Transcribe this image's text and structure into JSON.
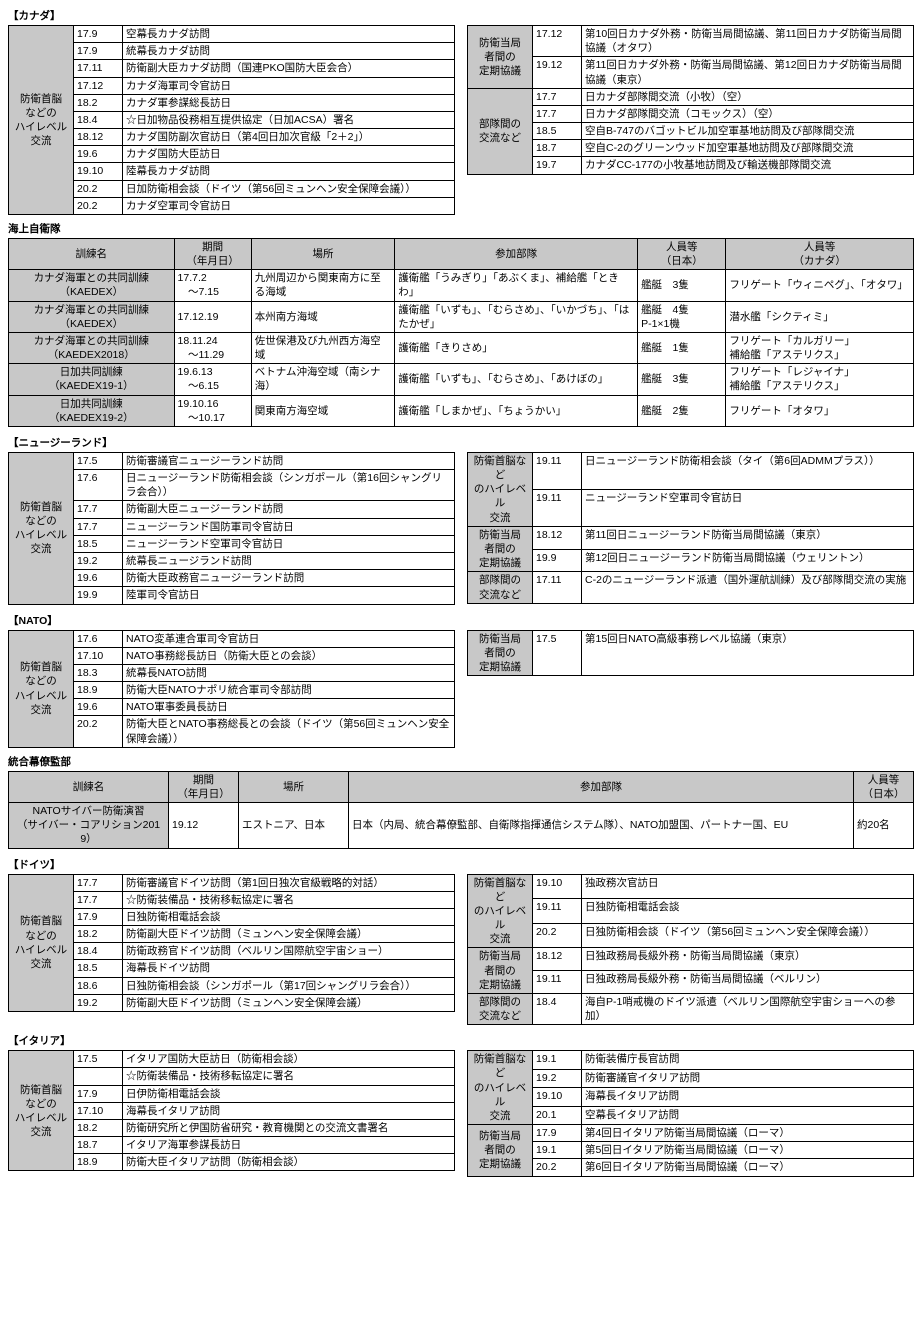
{
  "colors": {
    "header_bg": "#c8c8c8",
    "border": "#000000",
    "bg": "#ffffff",
    "text": "#000000"
  },
  "font": {
    "family": "Hiragino Kaku Gothic Pro",
    "size_pt": 10.5,
    "header_weight": "bold"
  },
  "canada": {
    "heading": "【カナダ】",
    "left": {
      "label": "防衛首脳\nなどの\nハイレベル\n交流",
      "rows": [
        [
          "17.9",
          "空幕長カナダ訪問"
        ],
        [
          "17.9",
          "統幕長カナダ訪問"
        ],
        [
          "17.11",
          "防衛副大臣カナダ訪問（国連PKO国防大臣会合）"
        ],
        [
          "17.12",
          "カナダ海軍司令官訪日"
        ],
        [
          "18.2",
          "カナダ軍参謀総長訪日"
        ],
        [
          "18.4",
          "☆日加物品役務相互提供協定（日加ACSA）署名"
        ],
        [
          "18.12",
          "カナダ国防副次官訪日（第4回日加次官級「2＋2」）"
        ],
        [
          "19.6",
          "カナダ国防大臣訪日"
        ],
        [
          "19.10",
          "陸幕長カナダ訪問"
        ],
        [
          "20.2",
          "日加防衛相会談（ドイツ（第56回ミュンヘン安全保障会議））"
        ],
        [
          "20.2",
          "カナダ空軍司令官訪日"
        ]
      ]
    },
    "right": [
      {
        "label": "防衛当局\n者間の\n定期協議",
        "rows": [
          [
            "17.12",
            "第10回日カナダ外務・防衛当局間協議、第11回日カナダ防衛当局間協議（オタワ）"
          ],
          [
            "19.12",
            "第11回日カナダ外務・防衛当局間協議、第12回日カナダ防衛当局間協議（東京）"
          ]
        ]
      },
      {
        "label": "部隊間の\n交流など",
        "rows": [
          [
            "17.7",
            "日カナダ部隊間交流（小牧）（空）"
          ],
          [
            "17.7",
            "日カナダ部隊間交流（コモックス）（空）"
          ],
          [
            "18.5",
            "空自B-747のバゴットビル加空軍基地訪問及び部隊間交流"
          ],
          [
            "18.7",
            "空自C-2のグリーンウッド加空軍基地訪問及び部隊間交流"
          ],
          [
            "19.7",
            "カナダCC-177の小牧基地訪問及び輸送機部隊間交流"
          ]
        ]
      }
    ]
  },
  "jmsdf_heading": "海上自衛隊",
  "jmsdf_cols": [
    "訓練名",
    "期間\n（年月日）",
    "場所",
    "参加部隊",
    "人員等\n（日本）",
    "人員等\n（カナダ）"
  ],
  "jmsdf_rows": [
    [
      "カナダ海軍との共同訓練\n（KAEDEX）",
      "17.7.2\n　～7.15",
      "九州周辺から関東南方に至る海域",
      "護衛艦「うみぎり」「あぶくま」、補給艦「ときわ」",
      "艦艇　3隻",
      "フリゲート「ウィニペグ」、「オタワ」"
    ],
    [
      "カナダ海軍との共同訓練\n（KAEDEX）",
      "17.12.19",
      "本州南方海域",
      "護衛艦「いずも」、「むらさめ」、「いかづち」、「はたかぜ」",
      "艦艇　4隻\nP-1×1機",
      "潜水艦「シクティミ」"
    ],
    [
      "カナダ海軍との共同訓練\n（KAEDEX2018）",
      "18.11.24\n　～11.29",
      "佐世保港及び九州西方海空域",
      "護衛艦「きりさめ」",
      "艦艇　1隻",
      "フリゲート「カルガリー」\n補給艦「アステリクス」"
    ],
    [
      "日加共同訓練\n（KAEDEX19-1）",
      "19.6.13\n　～6.15",
      "ベトナム沖海空域（南シナ海）",
      "護衛艦「いずも」、「むらさめ」、「あけぼの」",
      "艦艇　3隻",
      "フリゲート「レジャイナ」\n補給艦「アステリクス」"
    ],
    [
      "日加共同訓練\n（KAEDEX19-2）",
      "19.10.16\n　～10.17",
      "関東南方海空域",
      "護衛艦「しまかぜ」、「ちょうかい」",
      "艦艇　2隻",
      "フリゲート「オタワ」"
    ]
  ],
  "nz": {
    "heading": "【ニュージーランド】",
    "left": {
      "label": "防衛首脳\nなどの\nハイレベル\n交流",
      "rows": [
        [
          "17.5",
          "防衛審議官ニュージーランド訪問"
        ],
        [
          "17.6",
          "日ニュージーランド防衛相会談（シンガポール（第16回シャングリラ会合））"
        ],
        [
          "17.7",
          "防衛副大臣ニュージーランド訪問"
        ],
        [
          "17.7",
          "ニュージーランド国防軍司令官訪日"
        ],
        [
          "18.5",
          "ニュージーランド空軍司令官訪日"
        ],
        [
          "19.2",
          "統幕長ニュージランド訪問"
        ],
        [
          "19.6",
          "防衛大臣政務官ニュージーランド訪問"
        ],
        [
          "19.9",
          "陸軍司令官訪日"
        ]
      ]
    },
    "right": [
      {
        "label": "防衛首脳など\nのハイレベル\n交流",
        "rows": [
          [
            "19.11",
            "日ニュージーランド防衛相会談（タイ（第6回ADMMプラス））"
          ],
          [
            "19.11",
            "ニュージーランド空軍司令官訪日"
          ]
        ]
      },
      {
        "label": "防衛当局\n者間の\n定期協議",
        "rows": [
          [
            "18.12",
            "第11回日ニュージーランド防衛当局間協議（東京）"
          ],
          [
            "19.9",
            "第12回日ニュージーランド防衛当局間協議（ウェリントン）"
          ]
        ]
      },
      {
        "label": "部隊間の\n交流など",
        "rows": [
          [
            "17.11",
            "C-2のニュージーランド派遣（国外運航訓練）及び部隊間交流の実施"
          ]
        ]
      }
    ]
  },
  "nato": {
    "heading": "【NATO】",
    "left": {
      "label": "防衛首脳\nなどの\nハイレベル\n交流",
      "rows": [
        [
          "17.6",
          "NATO変革連合軍司令官訪日"
        ],
        [
          "17.10",
          "NATO事務総長訪日（防衛大臣との会談）"
        ],
        [
          "18.3",
          "統幕長NATO訪問"
        ],
        [
          "18.9",
          "防衛大臣NATOナポリ統合軍司令部訪問"
        ],
        [
          "19.6",
          "NATO軍事委員長訪日"
        ],
        [
          "20.2",
          "防衛大臣とNATO事務総長との会談（ドイツ（第56回ミュンヘン安全保障会議））"
        ]
      ]
    },
    "right": [
      {
        "label": "防衛当局\n者間の\n定期協議",
        "rows": [
          [
            "17.5",
            "第15回日NATO高級事務レベル協議（東京）"
          ]
        ]
      }
    ]
  },
  "jso_heading": "統合幕僚監部",
  "jso_cols": [
    "訓練名",
    "期間\n（年月日）",
    "場所",
    "参加部隊",
    "人員等\n（日本）"
  ],
  "jso_rows": [
    [
      "NATOサイバー防衛演習\n（サイバー・コアリション2019）",
      "19.12",
      "エストニア、日本",
      "日本（内局、統合幕僚監部、自衛隊指揮通信システム隊）、NATO加盟国、パートナー国、EU",
      "約20名"
    ]
  ],
  "germany": {
    "heading": "【ドイツ】",
    "left": {
      "label": "防衛首脳\nなどの\nハイレベル\n交流",
      "rows": [
        [
          "17.7",
          "防衛審議官ドイツ訪問（第1回日独次官級戦略的対話）"
        ],
        [
          "17.7",
          "☆防衛装備品・技術移転協定に署名"
        ],
        [
          "17.9",
          "日独防衛相電話会談"
        ],
        [
          "18.2",
          "防衛副大臣ドイツ訪問（ミュンヘン安全保障会議）"
        ],
        [
          "18.4",
          "防衛政務官ドイツ訪問（ベルリン国際航空宇宙ショー）"
        ],
        [
          "18.5",
          "海幕長ドイツ訪問"
        ],
        [
          "18.6",
          "日独防衛相会談（シンガポール（第17回シャングリラ会合））"
        ],
        [
          "19.2",
          "防衛副大臣ドイツ訪問（ミュンヘン安全保障会議）"
        ]
      ]
    },
    "right": [
      {
        "label": "防衛首脳など\nのハイレベル\n交流",
        "rows": [
          [
            "19.10",
            "独政務次官訪日"
          ],
          [
            "19.11",
            "日独防衛相電話会談"
          ],
          [
            "20.2",
            "日独防衛相会談（ドイツ（第56回ミュンヘン安全保障会議））"
          ]
        ]
      },
      {
        "label": "防衛当局\n者間の\n定期協議",
        "rows": [
          [
            "18.12",
            "日独政務局長級外務・防衛当局間協議（東京）"
          ],
          [
            "19.11",
            "日独政務局長級外務・防衛当局間協議（ベルリン）"
          ]
        ]
      },
      {
        "label": "部隊間の\n交流など",
        "rows": [
          [
            "18.4",
            "海自P-1哨戒機のドイツ派遣（ベルリン国際航空宇宙ショーへの参加）"
          ]
        ]
      }
    ]
  },
  "italy": {
    "heading": "【イタリア】",
    "left": {
      "label": "防衛首脳\nなどの\nハイレベル\n交流",
      "rows": [
        [
          "17.5",
          "イタリア国防大臣訪日（防衛相会談）"
        ],
        [
          "",
          "☆防衛装備品・技術移転協定に署名"
        ],
        [
          "17.9",
          "日伊防衛相電話会談"
        ],
        [
          "17.10",
          "海幕長イタリア訪問"
        ],
        [
          "18.2",
          "防衛研究所と伊国防省研究・教育機関との交流文書署名"
        ],
        [
          "18.7",
          "イタリア海軍参謀長訪日"
        ],
        [
          "18.9",
          "防衛大臣イタリア訪問（防衛相会談）"
        ]
      ]
    },
    "right": [
      {
        "label": "防衛首脳など\nのハイレベル\n交流",
        "rows": [
          [
            "19.1",
            "防衛装備庁長官訪問"
          ],
          [
            "19.2",
            "防衛審議官イタリア訪問"
          ],
          [
            "19.10",
            "海幕長イタリア訪問"
          ],
          [
            "20.1",
            "空幕長イタリア訪問"
          ]
        ]
      },
      {
        "label": "防衛当局\n者間の\n定期協議",
        "rows": [
          [
            "17.9",
            "第4回日イタリア防衛当局間協議（ローマ）"
          ],
          [
            "19.1",
            "第5回日イタリア防衛当局間協議（ローマ）"
          ],
          [
            "20.2",
            "第6回日イタリア防衛当局間協議（ローマ）"
          ]
        ]
      }
    ]
  }
}
